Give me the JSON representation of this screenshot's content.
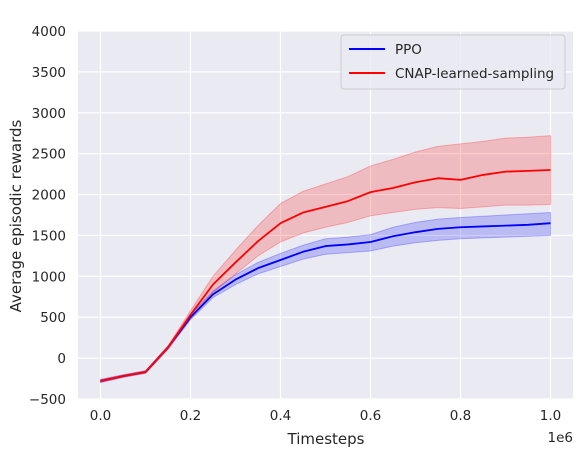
{
  "chart_data": {
    "type": "line",
    "title": "",
    "xlabel": "Timesteps",
    "ylabel": "Average episodic rewards",
    "x_offset_label": "1e6",
    "xlim": [
      -0.05,
      1.05
    ],
    "ylim": [
      -500,
      4000
    ],
    "x_ticks": [
      0.0,
      0.2,
      0.4,
      0.6,
      0.8,
      1.0
    ],
    "x_tick_labels": [
      "0.0",
      "0.2",
      "0.4",
      "0.6",
      "0.8",
      "1.0"
    ],
    "y_ticks": [
      -500,
      0,
      500,
      1000,
      1500,
      2000,
      2500,
      3000,
      3500,
      4000
    ],
    "y_tick_labels": [
      "−500",
      "0",
      "500",
      "1000",
      "1500",
      "2000",
      "2500",
      "3000",
      "3500",
      "4000"
    ],
    "grid": true,
    "legend_position": "top-right",
    "x": [
      0.0,
      0.05,
      0.1,
      0.15,
      0.2,
      0.25,
      0.3,
      0.35,
      0.4,
      0.45,
      0.5,
      0.55,
      0.6,
      0.65,
      0.7,
      0.75,
      0.8,
      0.85,
      0.9,
      0.95,
      1.0
    ],
    "series": [
      {
        "name": "PPO",
        "color": "#0000ff",
        "values": [
          -280,
          -220,
          -170,
          130,
          500,
          780,
          960,
          1100,
          1200,
          1300,
          1370,
          1390,
          1420,
          1490,
          1540,
          1580,
          1600,
          1610,
          1620,
          1630,
          1650
        ],
        "lower": [
          -300,
          -235,
          -185,
          110,
          470,
          740,
          900,
          1030,
          1120,
          1210,
          1270,
          1290,
          1310,
          1370,
          1410,
          1440,
          1460,
          1470,
          1480,
          1490,
          1500
        ],
        "upper": [
          -260,
          -205,
          -155,
          150,
          530,
          820,
          1020,
          1170,
          1280,
          1380,
          1460,
          1480,
          1510,
          1600,
          1660,
          1700,
          1720,
          1735,
          1750,
          1765,
          1780
        ]
      },
      {
        "name": "CNAP-learned-sampling",
        "color": "#ff0000",
        "values": [
          -280,
          -220,
          -170,
          130,
          530,
          900,
          1170,
          1430,
          1650,
          1780,
          1850,
          1920,
          2030,
          2080,
          2150,
          2200,
          2180,
          2240,
          2280,
          2290,
          2300
        ],
        "lower": [
          -295,
          -235,
          -185,
          110,
          480,
          800,
          1030,
          1250,
          1420,
          1530,
          1600,
          1660,
          1740,
          1780,
          1820,
          1840,
          1830,
          1850,
          1870,
          1870,
          1880
        ],
        "upper": [
          -265,
          -205,
          -155,
          150,
          580,
          1000,
          1320,
          1620,
          1890,
          2040,
          2130,
          2220,
          2350,
          2430,
          2520,
          2590,
          2620,
          2650,
          2690,
          2700,
          2720
        ]
      }
    ]
  }
}
